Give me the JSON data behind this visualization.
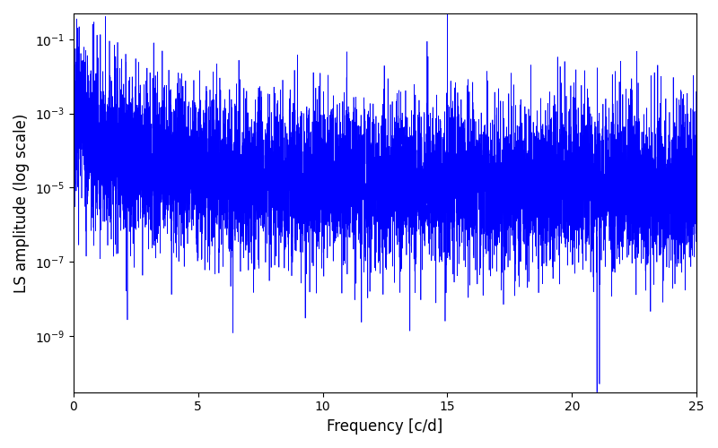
{
  "xlabel": "Frequency [c/d]",
  "ylabel": "LS amplitude (log scale)",
  "xlim": [
    0,
    25
  ],
  "ylim": [
    3e-11,
    0.5
  ],
  "line_color": "#0000ff",
  "line_width": 0.5,
  "bg_color": "#ffffff",
  "yscale": "log",
  "seed": 7777,
  "n_points": 8000,
  "freq_max": 25.0
}
